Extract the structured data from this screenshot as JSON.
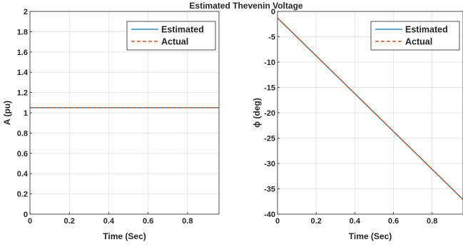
{
  "figure": {
    "title": "Estimated Thevenin Voltage"
  },
  "colors": {
    "estimated": "#0072BD",
    "actual": "#D95319",
    "grid": "#e6e6e6",
    "axis": "#262626"
  },
  "chart_data": [
    {
      "type": "line",
      "xlabel": "Time (Sec)",
      "ylabel": "A (pu)",
      "xlim": [
        0,
        0.96
      ],
      "ylim": [
        0,
        2
      ],
      "xticks": [
        0,
        0.2,
        0.4,
        0.6,
        0.8
      ],
      "xticklabels": [
        "0",
        "0.2",
        "0.4",
        "0.6",
        "0.8"
      ],
      "yticks": [
        0,
        0.2,
        0.4,
        0.6,
        0.8,
        1,
        1.2,
        1.4,
        1.6,
        1.8,
        2
      ],
      "yticklabels": [
        "0",
        "0.2",
        "0.4",
        "0.6",
        "0.8",
        "1",
        "1.2",
        "1.4",
        "1.6",
        "1.8",
        "2"
      ],
      "grid": true,
      "legend_position": "top-right",
      "series": [
        {
          "name": "Estimated",
          "style": "solid",
          "x": [
            0,
            0.96
          ],
          "y": [
            1.05,
            1.05
          ]
        },
        {
          "name": "Actual",
          "style": "dashed",
          "x": [
            0,
            0.96
          ],
          "y": [
            1.05,
            1.05
          ]
        }
      ]
    },
    {
      "type": "line",
      "xlabel": "Time (Sec)",
      "ylabel": "ϕ (deg)",
      "xlim": [
        0,
        0.96
      ],
      "ylim": [
        -40,
        0
      ],
      "xticks": [
        0,
        0.2,
        0.4,
        0.6,
        0.8
      ],
      "xticklabels": [
        "0",
        "0.2",
        "0.4",
        "0.6",
        "0.8"
      ],
      "yticks": [
        -40,
        -35,
        -30,
        -25,
        -20,
        -15,
        -10,
        -5,
        0
      ],
      "yticklabels": [
        "-40",
        "-35",
        "-30",
        "-25",
        "-20",
        "-15",
        "-10",
        "-5",
        "0"
      ],
      "grid": true,
      "legend_position": "top-right",
      "series": [
        {
          "name": "Estimated",
          "style": "solid",
          "x": [
            0,
            0.96
          ],
          "y": [
            -1.3,
            -37.1
          ]
        },
        {
          "name": "Actual",
          "style": "dashed",
          "x": [
            0,
            0.96
          ],
          "y": [
            -1.3,
            -37.1
          ]
        }
      ]
    }
  ]
}
